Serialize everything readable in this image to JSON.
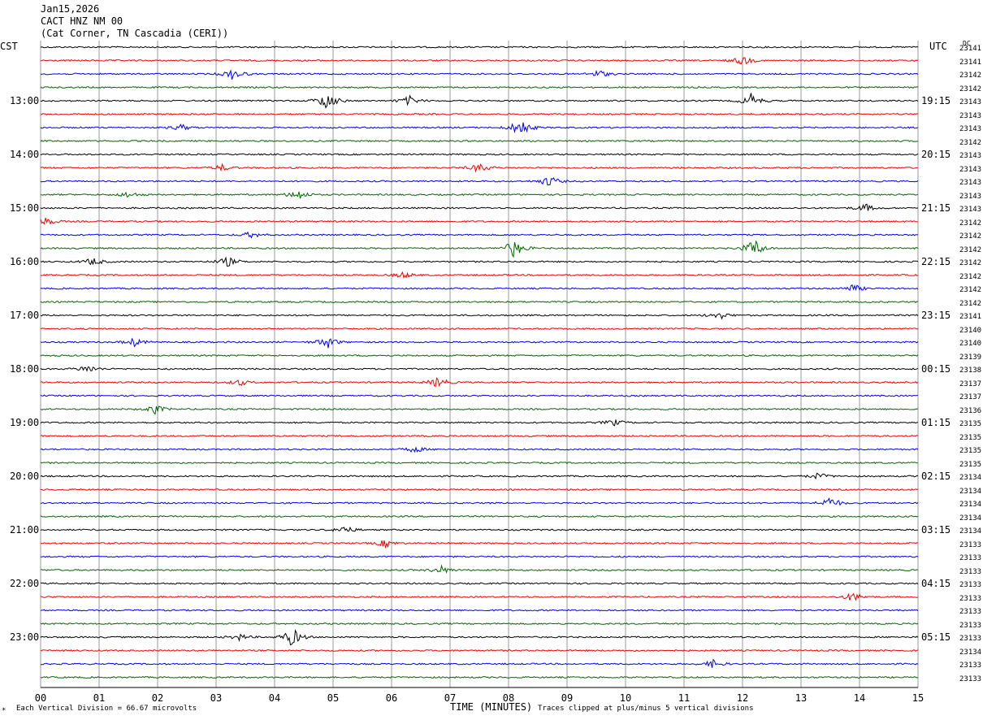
{
  "header": {
    "date": "Jan15,2026",
    "station": "CACT HNZ NM 00",
    "location": "(Cat Corner, TN Cascadia (CERI))"
  },
  "left_tz": "CST",
  "right_tz": "UTC",
  "dc_label": "DC",
  "footer": {
    "scale_note": "Each Vertical Division =   66.67 microvolts",
    "xlabel": "TIME (MINUTES)",
    "clip_note": "Traces clipped at plus/minus 5 vertical divisions",
    "corner_mark": "*"
  },
  "chart_data": {
    "type": "line",
    "title": "",
    "xlabel": "TIME (MINUTES)",
    "xlim": [
      0,
      15
    ],
    "x_ticks": [
      "00",
      "01",
      "02",
      "03",
      "04",
      "05",
      "06",
      "07",
      "08",
      "09",
      "10",
      "11",
      "12",
      "13",
      "14",
      "15"
    ],
    "left_hour_labels": [
      "13:00",
      "14:00",
      "15:00",
      "16:00",
      "17:00",
      "18:00",
      "19:00",
      "20:00",
      "21:00",
      "22:00",
      "23:00"
    ],
    "right_hour_labels": [
      "19:15",
      "20:15",
      "21:15",
      "22:15",
      "23:15",
      "00:15",
      "01:15",
      "02:15",
      "03:15",
      "04:15",
      "05:15"
    ],
    "trace_colors": [
      "#000000",
      "#ee0000",
      "#0000ee",
      "#006600"
    ],
    "grid": true,
    "dc_offsets": [
      "23141",
      "23141",
      "23142",
      "23142",
      "23143",
      "23143",
      "23143",
      "23142",
      "23143",
      "23143",
      "23143",
      "23143",
      "23143",
      "23142",
      "23142",
      "23142",
      "23142",
      "23142",
      "23142",
      "23142",
      "23141",
      "23140",
      "23140",
      "23139",
      "23138",
      "23137",
      "23137",
      "23136",
      "23135",
      "23135",
      "23135",
      "23135",
      "23134",
      "23134",
      "23134",
      "23134",
      "23134",
      "23133",
      "23133",
      "23133",
      "23133",
      "23133",
      "23133",
      "23133",
      "23133",
      "23134",
      "23133",
      "23133"
    ],
    "events": [
      {
        "trace": 1,
        "minute": 12.0,
        "amp": 6
      },
      {
        "trace": 2,
        "minute": 3.3,
        "amp": 8
      },
      {
        "trace": 2,
        "minute": 9.55,
        "amp": 5
      },
      {
        "trace": 4,
        "minute": 4.9,
        "amp": 12
      },
      {
        "trace": 4,
        "minute": 6.3,
        "amp": 6
      },
      {
        "trace": 4,
        "minute": 12.15,
        "amp": 9
      },
      {
        "trace": 6,
        "minute": 8.2,
        "amp": 12
      },
      {
        "trace": 6,
        "minute": 2.4,
        "amp": 4
      },
      {
        "trace": 9,
        "minute": 3.1,
        "amp": 4
      },
      {
        "trace": 9,
        "minute": 7.5,
        "amp": 6
      },
      {
        "trace": 10,
        "minute": 8.7,
        "amp": 7
      },
      {
        "trace": 11,
        "minute": 4.4,
        "amp": 7
      },
      {
        "trace": 11,
        "minute": 1.5,
        "amp": 4
      },
      {
        "trace": 12,
        "minute": 14.1,
        "amp": 5
      },
      {
        "trace": 13,
        "minute": 0.1,
        "amp": 5
      },
      {
        "trace": 14,
        "minute": 3.6,
        "amp": 4
      },
      {
        "trace": 15,
        "minute": 8.1,
        "amp": 12
      },
      {
        "trace": 15,
        "minute": 12.2,
        "amp": 12
      },
      {
        "trace": 16,
        "minute": 3.2,
        "amp": 6
      },
      {
        "trace": 16,
        "minute": 0.9,
        "amp": 5
      },
      {
        "trace": 17,
        "minute": 6.2,
        "amp": 4
      },
      {
        "trace": 18,
        "minute": 13.9,
        "amp": 5
      },
      {
        "trace": 20,
        "minute": 11.6,
        "amp": 5
      },
      {
        "trace": 22,
        "minute": 4.9,
        "amp": 8
      },
      {
        "trace": 22,
        "minute": 1.6,
        "amp": 5
      },
      {
        "trace": 24,
        "minute": 0.8,
        "amp": 5
      },
      {
        "trace": 25,
        "minute": 6.8,
        "amp": 7
      },
      {
        "trace": 25,
        "minute": 3.4,
        "amp": 4
      },
      {
        "trace": 27,
        "minute": 1.95,
        "amp": 6
      },
      {
        "trace": 28,
        "minute": 9.8,
        "amp": 4
      },
      {
        "trace": 30,
        "minute": 6.4,
        "amp": 4
      },
      {
        "trace": 32,
        "minute": 13.3,
        "amp": 4
      },
      {
        "trace": 34,
        "minute": 13.5,
        "amp": 8
      },
      {
        "trace": 36,
        "minute": 5.2,
        "amp": 5
      },
      {
        "trace": 37,
        "minute": 5.9,
        "amp": 5
      },
      {
        "trace": 39,
        "minute": 6.85,
        "amp": 5
      },
      {
        "trace": 41,
        "minute": 13.9,
        "amp": 6
      },
      {
        "trace": 44,
        "minute": 4.3,
        "amp": 12
      },
      {
        "trace": 44,
        "minute": 3.4,
        "amp": 4
      },
      {
        "trace": 46,
        "minute": 11.5,
        "amp": 5
      }
    ]
  }
}
